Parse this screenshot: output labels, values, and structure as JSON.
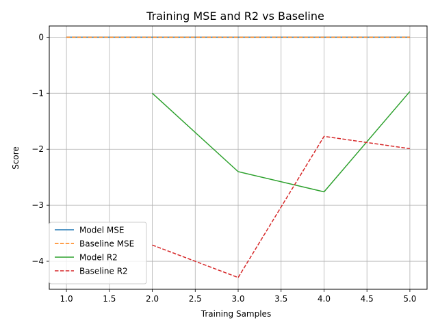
{
  "chart_data": {
    "type": "line",
    "title": "Training MSE and R2 vs Baseline",
    "xlabel": "Training Samples",
    "ylabel": "Score",
    "xlim": [
      0.8,
      5.2
    ],
    "ylim": [
      -4.5,
      0.2
    ],
    "grid": true,
    "legend_position": "lower-left",
    "x_ticks": [
      1.0,
      1.5,
      2.0,
      2.5,
      3.0,
      3.5,
      4.0,
      4.5,
      5.0
    ],
    "x_tick_labels": [
      "1.0",
      "1.5",
      "2.0",
      "2.5",
      "3.0",
      "3.5",
      "4.0",
      "4.5",
      "5.0"
    ],
    "y_ticks": [
      0,
      -1,
      -2,
      -3,
      -4
    ],
    "y_tick_labels": [
      "0",
      "−1",
      "−2",
      "−3",
      "−4"
    ],
    "series": [
      {
        "name": "Model MSE",
        "color": "#1f77b4",
        "dashed": false,
        "x": [
          1,
          2,
          3,
          4,
          5
        ],
        "values": [
          0,
          0,
          0,
          0,
          0
        ]
      },
      {
        "name": "Baseline MSE",
        "color": "#ff7f0e",
        "dashed": true,
        "x": [
          1,
          2,
          3,
          4,
          5
        ],
        "values": [
          0,
          0,
          0,
          0,
          0
        ]
      },
      {
        "name": "Model R2",
        "color": "#2ca02c",
        "dashed": false,
        "x": [
          2,
          3,
          4,
          5
        ],
        "values": [
          -1.0,
          -2.4,
          -2.76,
          -0.97
        ]
      },
      {
        "name": "Baseline R2",
        "color": "#d62728",
        "dashed": true,
        "x": [
          2,
          3,
          4,
          5
        ],
        "values": [
          -3.71,
          -4.29,
          -1.77,
          -1.99
        ]
      }
    ]
  }
}
